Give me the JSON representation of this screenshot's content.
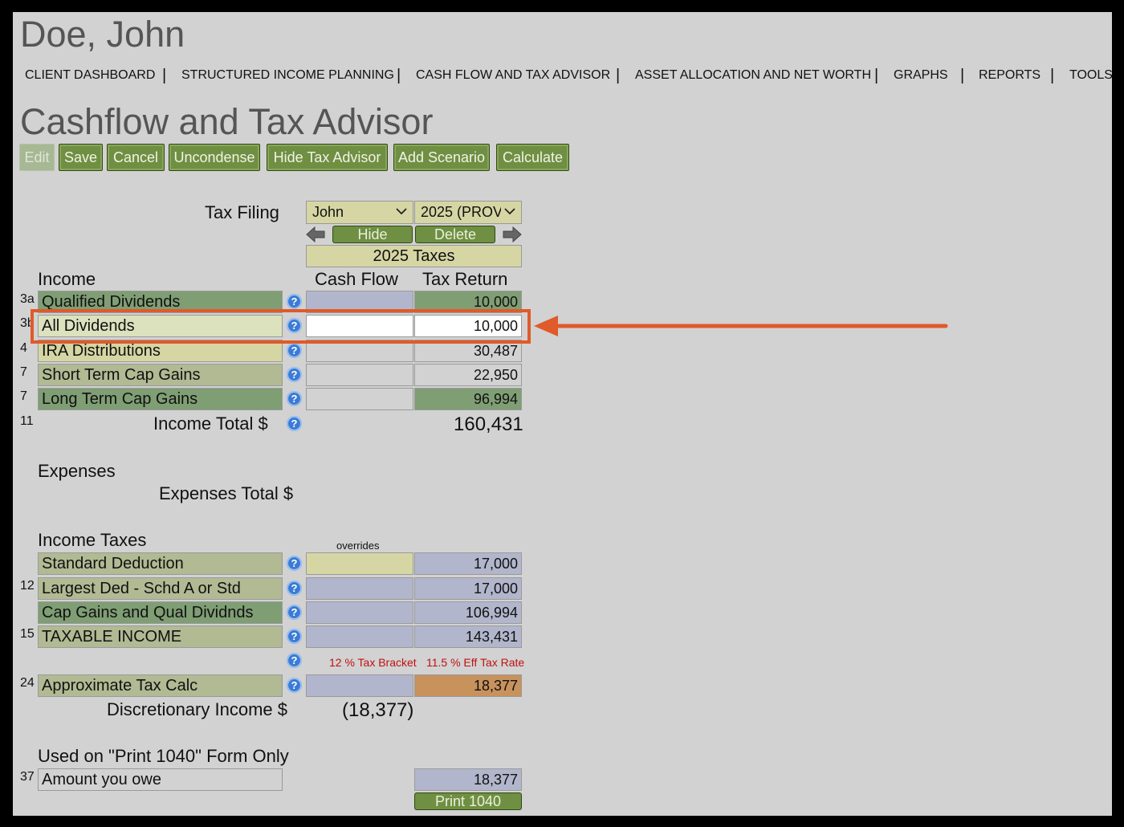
{
  "client_name": "Doe, John",
  "nav": [
    "CLIENT DASHBOARD",
    "STRUCTURED INCOME PLANNING",
    "CASH FLOW AND TAX ADVISOR",
    "ASSET ALLOCATION AND NET WORTH",
    "GRAPHS",
    "REPORTS",
    "TOOLS"
  ],
  "page_title": "Cashflow and Tax Advisor",
  "toolbar": {
    "edit": "Edit",
    "save": "Save",
    "cancel": "Cancel",
    "uncondense": "Uncondense",
    "hide_tax_advisor": "Hide Tax Advisor",
    "add_scenario": "Add Scenario",
    "calculate": "Calculate"
  },
  "tax_filing": {
    "label": "Tax Filing",
    "filer": "John",
    "year": "2025 (PROV)",
    "hide": "Hide",
    "delete": "Delete",
    "taxes_header": "2025 Taxes"
  },
  "income": {
    "title": "Income",
    "col_cash_flow": "Cash Flow",
    "col_tax_return": "Tax Return",
    "rows": [
      {
        "num": "3a",
        "label": "Qualified Dividends",
        "cash_flow": "",
        "tax_return": "10,000"
      },
      {
        "num": "3b",
        "label": "All Dividends",
        "cash_flow": "",
        "tax_return": "10,000"
      },
      {
        "num": "4",
        "label": "IRA Distributions",
        "cash_flow": "",
        "tax_return": "30,487"
      },
      {
        "num": "7",
        "label": "Short Term Cap Gains",
        "cash_flow": "",
        "tax_return": "22,950"
      },
      {
        "num": "7",
        "label": "Long Term Cap Gains",
        "cash_flow": "",
        "tax_return": "96,994"
      }
    ],
    "total_num": "11",
    "total_label": "Income Total $",
    "total_value": "160,431"
  },
  "expenses": {
    "title": "Expenses",
    "total_label": "Expenses Total $"
  },
  "income_taxes": {
    "title": "Income Taxes",
    "overrides": "overrides",
    "rows": [
      {
        "num": "",
        "label": "Standard Deduction",
        "value": "17,000"
      },
      {
        "num": "12",
        "label": "Largest Ded - Schd A or Std",
        "value": "17,000"
      },
      {
        "num": "",
        "label": "Cap Gains and Qual Dividnds",
        "value": "106,994"
      },
      {
        "num": "15",
        "label": "TAXABLE INCOME",
        "value": "143,431"
      }
    ],
    "bracket": "12 % Tax Bracket",
    "eff_rate": "11.5 % Eff Tax Rate",
    "approx_num": "24",
    "approx_label": "Approximate Tax Calc",
    "approx_value": "18,377",
    "discretionary_label": "Discretionary Income $",
    "discretionary_value": "(18,377)"
  },
  "form1040": {
    "title": "Used on \"Print 1040\" Form Only",
    "num": "37",
    "label": "Amount you owe",
    "value": "18,377",
    "print_button": "Print 1040"
  },
  "colors": {
    "button_green": "#6f8f42",
    "highlight_orange": "#e05a2a",
    "note_red": "#c01010",
    "tax_orange": "#c8925c"
  },
  "icons": [
    "chevron-down-icon",
    "left-arrow-icon",
    "right-arrow-icon",
    "help-icon",
    "callout-arrow"
  ]
}
